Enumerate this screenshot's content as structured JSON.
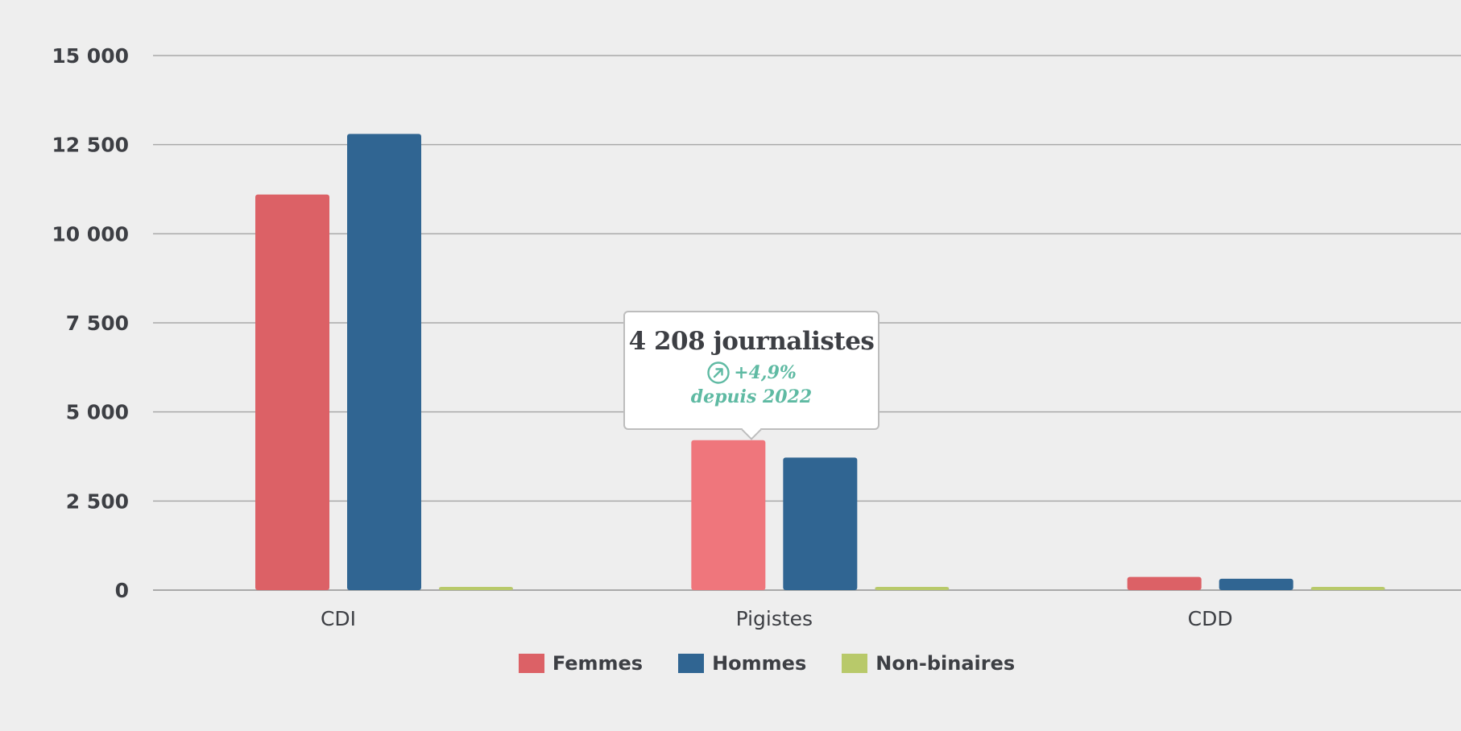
{
  "colors": {
    "background": "#eeeeee",
    "femmes": "#dc6166",
    "femmes_highlight": "#ef767c",
    "hommes": "#306592",
    "non_binaires": "#b8c96a",
    "tooltip_accent": "#5fbaa3",
    "text": "#3d3f44"
  },
  "chart_data": {
    "type": "bar",
    "categories": [
      "CDI",
      "Pigistes",
      "CDD"
    ],
    "series": [
      {
        "name": "Femmes",
        "color_key": "femmes",
        "values": [
          11100,
          4208,
          370
        ]
      },
      {
        "name": "Hommes",
        "color_key": "hommes",
        "values": [
          12800,
          3720,
          320
        ]
      },
      {
        "name": "Non-binaires",
        "color_key": "non_binaires",
        "values": [
          90,
          90,
          90
        ]
      }
    ],
    "ylim": [
      0,
      15000
    ],
    "yticks": [
      0,
      2500,
      5000,
      7500,
      10000,
      12500,
      15000
    ],
    "ytick_labels": [
      "0",
      "2 500",
      "5 000",
      "7 500",
      "10 000",
      "12 500",
      "15 000"
    ],
    "grid": true,
    "legend_position": "bottom-center",
    "highlighted": {
      "series": "Femmes",
      "category": "Pigistes"
    }
  },
  "legend": {
    "items": [
      {
        "label": "Femmes",
        "color": "#dc6166"
      },
      {
        "label": "Hommes",
        "color": "#306592"
      },
      {
        "label": "Non-binaires",
        "color": "#b8c96a"
      }
    ]
  },
  "tooltip": {
    "title": "4 208 journalistes",
    "change": "+4,9%",
    "since": "depuis 2022",
    "icon": "trend-up-circle-icon"
  }
}
